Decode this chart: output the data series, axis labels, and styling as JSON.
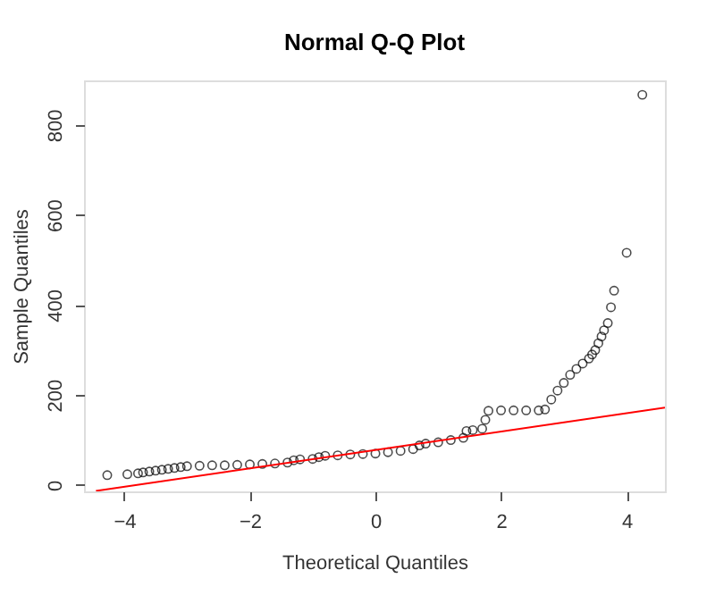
{
  "chart_data": {
    "type": "scatter",
    "title": "Normal Q-Q Plot",
    "xlabel": "Theoretical Quantiles",
    "ylabel": "Sample Quantiles",
    "xlim": [
      -4.64,
      4.61
    ],
    "ylim": [
      -14,
      899
    ],
    "xticks": [
      -4,
      -2,
      0,
      2,
      4
    ],
    "yticks": [
      0,
      200,
      400,
      600,
      800
    ],
    "grid": false,
    "series": [
      {
        "color": "#000000",
        "marker": "circle",
        "x": [
          -4.27,
          -3.95,
          -3.78,
          -3.7,
          -3.6,
          -3.5,
          -3.4,
          -3.3,
          -3.2,
          -3.1,
          -3.0,
          -2.8,
          -2.6,
          -2.4,
          -2.2,
          -2.0,
          -1.8,
          -1.6,
          -1.4,
          -1.3,
          -1.2,
          -1.0,
          -0.9,
          -0.8,
          -0.6,
          -0.4,
          -0.2,
          0.0,
          0.2,
          0.4,
          0.6,
          0.7,
          0.8,
          1.0,
          1.2,
          1.4,
          1.45,
          1.55,
          1.7,
          1.75,
          1.8,
          2.0,
          2.2,
          2.4,
          2.6,
          2.7,
          2.8,
          2.9,
          3.0,
          3.1,
          3.2,
          3.3,
          3.4,
          3.45,
          3.5,
          3.55,
          3.6,
          3.64,
          3.7,
          3.75,
          3.8,
          4.0,
          4.25
        ],
        "values": [
          22,
          24,
          26,
          28,
          30,
          32,
          34,
          36,
          38,
          40,
          42,
          43,
          44,
          44,
          45,
          46,
          47,
          48,
          50,
          55,
          57,
          58,
          62,
          65,
          66,
          68,
          69,
          70,
          73,
          76,
          80,
          88,
          92,
          95,
          100,
          105,
          120,
          122,
          125,
          145,
          165,
          166,
          166,
          166,
          166,
          168,
          190,
          210,
          227,
          245,
          258,
          270,
          281,
          290,
          300,
          315,
          330,
          344,
          360,
          395,
          432,
          516,
          867
        ]
      },
      {
        "type": "line",
        "color": "#ff0000",
        "line_style": "solid",
        "marker": "none",
        "x": [
          -4.45,
          4.61
        ],
        "values": [
          -13,
          172
        ]
      }
    ]
  }
}
